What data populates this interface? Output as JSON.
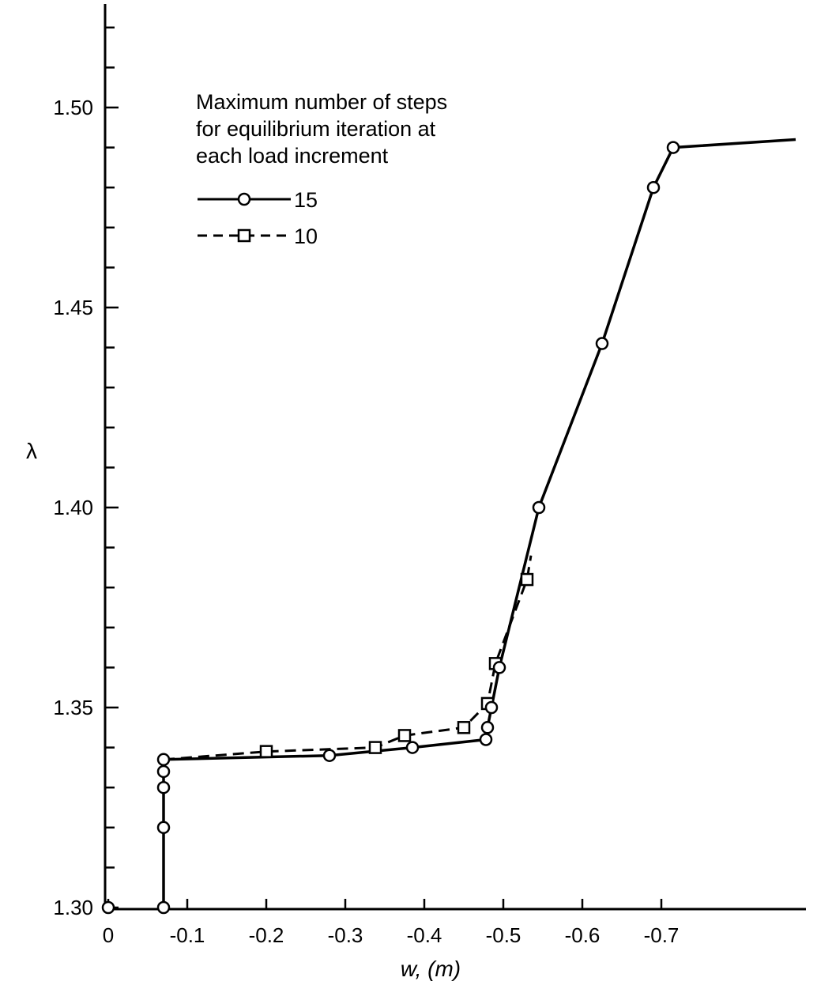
{
  "chart_data": {
    "type": "line",
    "xlabel": "w, (m)",
    "ylabel": "λ",
    "xlim": [
      0,
      -0.87
    ],
    "ylim": [
      1.3,
      1.525
    ],
    "x_ticks": [
      0,
      -0.1,
      -0.2,
      -0.3,
      -0.4,
      -0.5,
      -0.6,
      -0.7
    ],
    "x_tick_labels": [
      "0",
      "-0.1",
      "-0.2",
      "-0.3",
      "-0.4",
      "-0.5",
      "-0.6",
      "-0.7"
    ],
    "y_ticks": [
      1.3,
      1.35,
      1.4,
      1.45,
      1.5
    ],
    "y_tick_labels": [
      "1.30",
      "1.35",
      "1.40",
      "1.45",
      "1.50"
    ],
    "y_minor_step": 0.01,
    "legend": {
      "title_lines": [
        "Maximum  number of steps",
        "for equilibrium iteration at",
        "each load increment"
      ],
      "placement": "top-left"
    },
    "series": [
      {
        "name": "15",
        "line_style": "solid",
        "marker": "circle",
        "points": [
          [
            -0.07,
            1.3
          ],
          [
            -0.07,
            1.32
          ],
          [
            -0.07,
            1.33
          ],
          [
            -0.07,
            1.334
          ],
          [
            -0.07,
            1.337
          ],
          [
            -0.28,
            1.338
          ],
          [
            -0.385,
            1.34
          ],
          [
            -0.478,
            1.342
          ],
          [
            -0.48,
            1.345
          ],
          [
            -0.485,
            1.35
          ],
          [
            -0.495,
            1.36
          ],
          [
            -0.545,
            1.4
          ],
          [
            -0.625,
            1.441
          ],
          [
            -0.69,
            1.48
          ],
          [
            -0.715,
            1.49
          ]
        ],
        "line_end": [
          -0.87,
          1.492
        ],
        "extra_points": [
          [
            0,
            1.3
          ]
        ]
      },
      {
        "name": "10",
        "line_style": "dashed",
        "marker": "square",
        "points": [
          [
            -0.07,
            1.337
          ],
          [
            -0.2,
            1.339
          ],
          [
            -0.338,
            1.34
          ],
          [
            -0.375,
            1.343
          ],
          [
            -0.45,
            1.345
          ],
          [
            -0.48,
            1.351
          ],
          [
            -0.49,
            1.361
          ],
          [
            -0.53,
            1.382
          ],
          [
            -0.535,
            1.388
          ]
        ]
      }
    ]
  }
}
